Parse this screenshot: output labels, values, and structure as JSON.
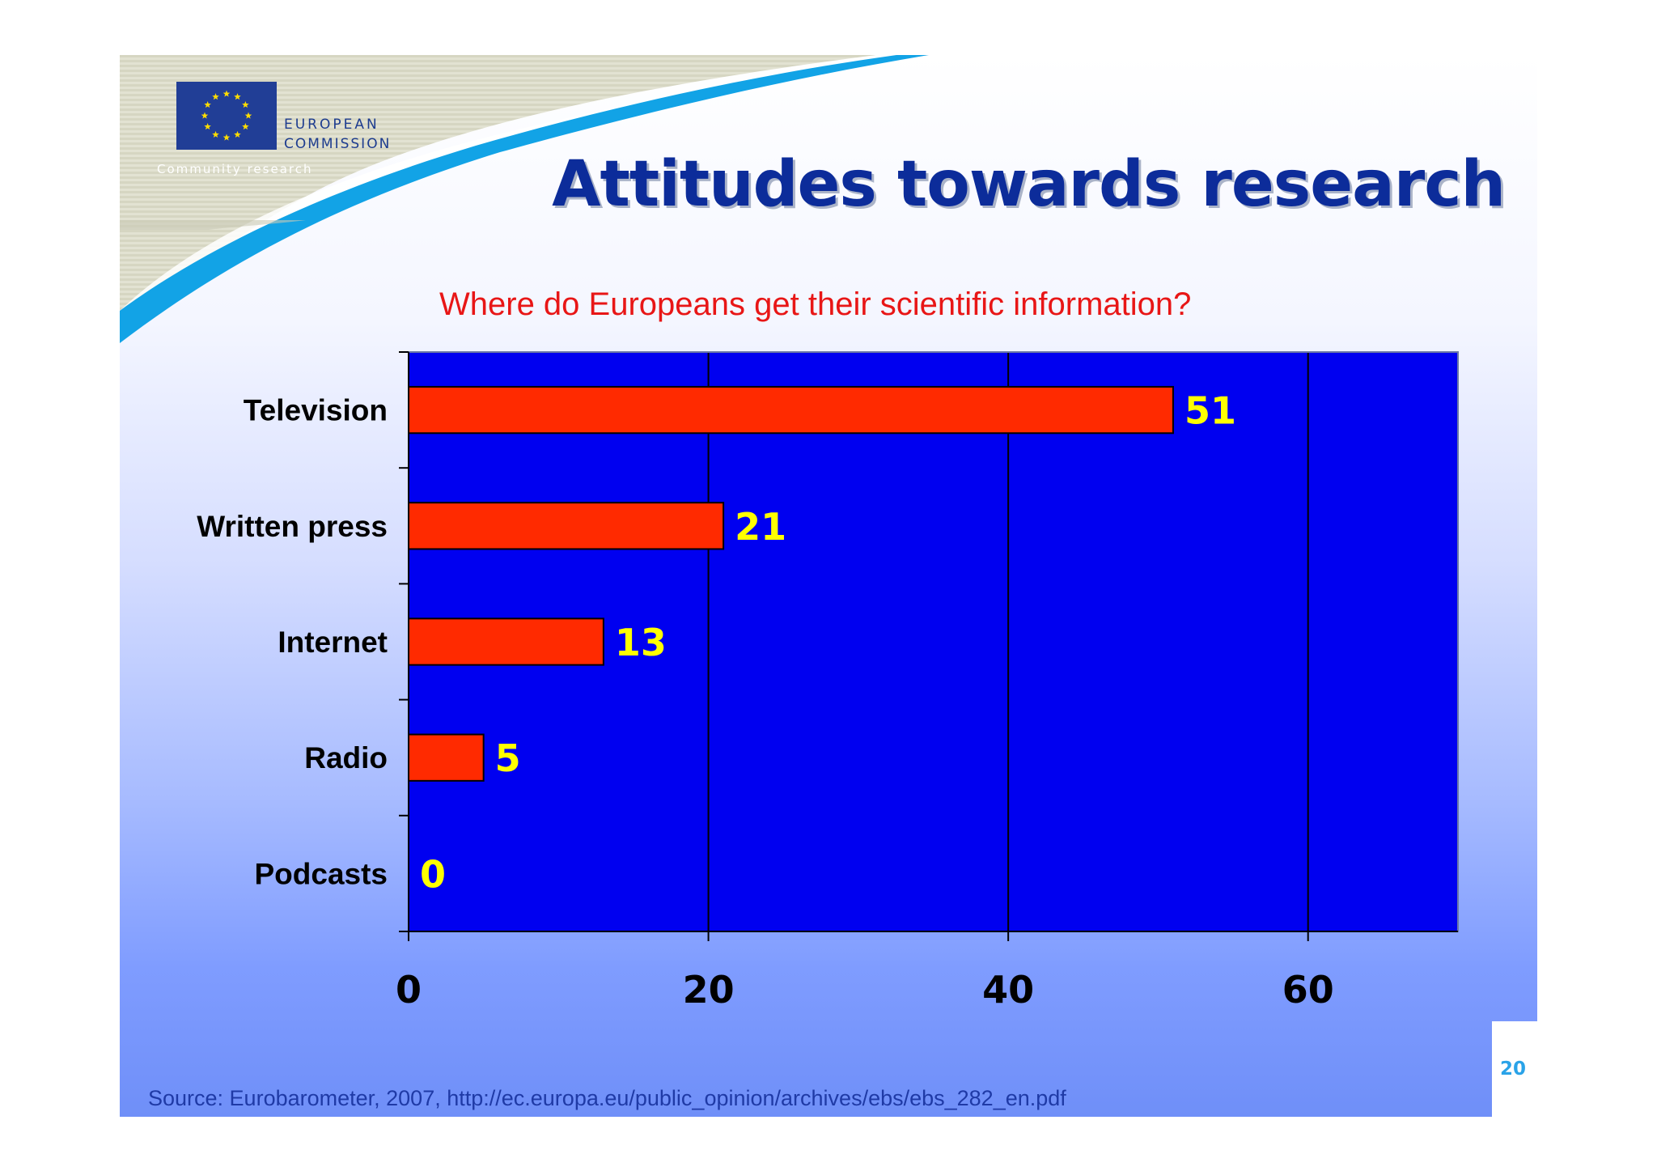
{
  "slide": {
    "title": "Attitudes towards research",
    "source": "Source: Eurobarometer, 2007, http://ec.europa.eu/public_opinion/archives/ebs/ebs_282_en.pdf",
    "page_number": "20"
  },
  "logo": {
    "line1": "EUROPEAN",
    "line2": "COMMISSION",
    "tagline": "Community research"
  },
  "colors": {
    "plot_background": "#0000f0",
    "bar_fill": "#ff2a00",
    "data_label": "#ffff00",
    "title": "#0c2c9a",
    "subtitle": "#e81616",
    "accent_swoosh": "#12a3e6"
  },
  "chart_data": {
    "type": "bar",
    "orientation": "horizontal",
    "title": "Where do Europeans get their scientific information?",
    "xlabel": "",
    "ylabel": "",
    "categories": [
      "Television",
      "Written press",
      "Internet",
      "Radio",
      "Podcasts"
    ],
    "values": [
      51,
      21,
      13,
      5,
      0
    ],
    "data_labels": [
      "51",
      "21",
      "13",
      "5",
      "0"
    ],
    "xlim": [
      0,
      70
    ],
    "x_ticks": [
      0,
      20,
      40,
      60
    ],
    "x_tick_labels": [
      "0",
      "20",
      "40",
      "60"
    ],
    "grid": "vertical lines",
    "legend": "none"
  }
}
